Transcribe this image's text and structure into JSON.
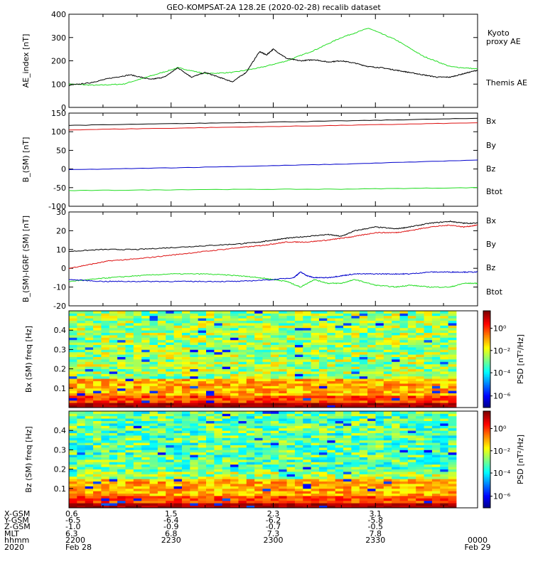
{
  "title": "GEO-KOMPSAT-2A 128.2E (2020-02-28) recalib dataset",
  "colors": {
    "black": "#000000",
    "green": "#22dd22",
    "red": "#dd1111",
    "blue": "#0000cc"
  },
  "chart_data": [
    {
      "type": "line",
      "name": "ae-panel",
      "ylabel": "AE_index [nT]",
      "ylim": [
        0,
        400
      ],
      "yticks": [
        0,
        100,
        200,
        300,
        400
      ],
      "legend": [
        {
          "label": "Kyoto",
          "color": "#22dd22"
        },
        {
          "label": "proxy AE",
          "color": "#22dd22"
        },
        {
          "label": "Themis AE",
          "color": "#000000"
        }
      ],
      "series": [
        {
          "name": "Kyoto proxy AE",
          "color": "#22dd22",
          "x": [
            0,
            4,
            8,
            12,
            16,
            20,
            24,
            28,
            32,
            36,
            40,
            44,
            48,
            52,
            56,
            60
          ],
          "y": [
            100,
            95,
            100,
            135,
            170,
            145,
            150,
            170,
            200,
            245,
            300,
            340,
            290,
            220,
            175,
            165
          ]
        },
        {
          "name": "Themis AE",
          "color": "#000000",
          "x": [
            0,
            3,
            6,
            9,
            12,
            14,
            16,
            18,
            20,
            22,
            24,
            26,
            28,
            29,
            30,
            32,
            34,
            36,
            38,
            40,
            42,
            44,
            46,
            48,
            50,
            52,
            54,
            56,
            58,
            60
          ],
          "y": [
            95,
            105,
            125,
            140,
            120,
            130,
            170,
            130,
            150,
            130,
            110,
            150,
            240,
            225,
            250,
            210,
            200,
            205,
            195,
            200,
            190,
            175,
            170,
            160,
            150,
            140,
            130,
            130,
            145,
            160
          ]
        }
      ]
    },
    {
      "type": "line",
      "name": "b-sm-panel",
      "ylabel": "B_(SM) [nT]",
      "ylim": [
        -100,
        150
      ],
      "yticks": [
        -100,
        -50,
        0,
        50,
        100,
        150
      ],
      "legend": [
        {
          "label": "Bx",
          "color": "#0000cc"
        },
        {
          "label": "By",
          "color": "#22dd22"
        },
        {
          "label": "Bz",
          "color": "#dd1111"
        },
        {
          "label": "Btot",
          "color": "#000000"
        }
      ],
      "series": [
        {
          "name": "Btot",
          "color": "#000000",
          "x": [
            0,
            20,
            40,
            60
          ],
          "y": [
            117,
            123,
            129,
            136
          ]
        },
        {
          "name": "Bz",
          "color": "#dd1111",
          "x": [
            0,
            20,
            40,
            60
          ],
          "y": [
            105,
            111,
            117,
            124
          ]
        },
        {
          "name": "Bx",
          "color": "#0000cc",
          "x": [
            0,
            20,
            40,
            60
          ],
          "y": [
            -2,
            5,
            13,
            24
          ]
        },
        {
          "name": "By",
          "color": "#22dd22",
          "x": [
            0,
            20,
            40,
            60
          ],
          "y": [
            -58,
            -55,
            -54,
            -50
          ]
        }
      ]
    },
    {
      "type": "line",
      "name": "b-igrf-panel",
      "ylabel": "B_(SM)-IGRF (SM) [nT]",
      "ylim": [
        -20,
        30
      ],
      "yticks": [
        -20,
        -10,
        0,
        10,
        20,
        30
      ],
      "legend": [
        {
          "label": "Bx",
          "color": "#0000cc"
        },
        {
          "label": "By",
          "color": "#22dd22"
        },
        {
          "label": "Bz",
          "color": "#dd1111"
        },
        {
          "label": "Btot",
          "color": "#000000"
        }
      ],
      "series": [
        {
          "name": "Btot",
          "color": "#000000",
          "x": [
            0,
            5,
            10,
            15,
            20,
            25,
            28,
            30,
            32,
            35,
            38,
            40,
            42,
            45,
            48,
            50,
            53,
            56,
            58,
            60
          ],
          "y": [
            9,
            10,
            10,
            11,
            12,
            13,
            14,
            15,
            16,
            17,
            18,
            17,
            20,
            22,
            21,
            22,
            24,
            25,
            24,
            24
          ]
        },
        {
          "name": "Bz",
          "color": "#dd1111",
          "x": [
            0,
            3,
            6,
            10,
            15,
            20,
            25,
            28,
            30,
            32,
            35,
            38,
            40,
            42,
            45,
            48,
            50,
            53,
            56,
            58,
            60
          ],
          "y": [
            0,
            2,
            4,
            5,
            7,
            9,
            11,
            12,
            13,
            14,
            14,
            15,
            16,
            17,
            19,
            19,
            20,
            22,
            23,
            22,
            23
          ]
        },
        {
          "name": "By",
          "color": "#22dd22",
          "x": [
            0,
            3,
            6,
            10,
            15,
            20,
            25,
            28,
            30,
            32,
            34,
            36,
            38,
            40,
            42,
            45,
            48,
            50,
            53,
            56,
            58,
            60
          ],
          "y": [
            -7,
            -6,
            -5,
            -4,
            -3,
            -3,
            -4,
            -5,
            -6,
            -7,
            -10,
            -6,
            -8,
            -8,
            -6,
            -9,
            -10,
            -9,
            -10,
            -10,
            -8,
            -8
          ]
        },
        {
          "name": "Bx",
          "color": "#0000cc",
          "x": [
            0,
            5,
            10,
            15,
            20,
            25,
            30,
            33,
            34,
            35,
            36,
            38,
            40,
            42,
            45,
            48,
            50,
            53,
            56,
            58,
            60
          ],
          "y": [
            -6,
            -7,
            -7,
            -7,
            -7,
            -7,
            -6,
            -5,
            -2,
            -4,
            -5,
            -5,
            -4,
            -3,
            -3,
            -3,
            -3,
            -2,
            -2,
            -2,
            -2
          ]
        }
      ]
    },
    {
      "type": "heatmap",
      "name": "bx-spectrogram",
      "ylabel": "Bx (SM) freq [Hz]",
      "ylim": [
        0,
        0.5
      ],
      "yticks": [
        0.1,
        0.2,
        0.3,
        0.4
      ],
      "yticklabels": [
        "0.1",
        "0.2",
        "0.3",
        "0.4"
      ]
    },
    {
      "type": "heatmap",
      "name": "bz-spectrogram",
      "ylabel": "Bz (SM) freq [Hz]",
      "ylim": [
        0,
        0.5
      ],
      "yticks": [
        0.1,
        0.2,
        0.3,
        0.4
      ],
      "yticklabels": [
        "0.1",
        "0.2",
        "0.3",
        "0.4"
      ]
    }
  ],
  "colorbar": {
    "label": "PSD [nT²/Hz]",
    "ticks": [
      "10⁰",
      "10⁻²",
      "10⁻⁴",
      "10⁻⁶"
    ],
    "ticks_bz": [
      "10⁰",
      "10⁻²",
      "10⁻⁴",
      "10⁻⁶"
    ]
  },
  "xaxis": {
    "row_labels": [
      "X-GSM",
      "Y-GSM",
      "Z-GSM",
      "MLT",
      "hhmm",
      "2020"
    ],
    "ticks": [
      {
        "minute": 0,
        "values": [
          "0.6",
          "-6.5",
          "-1.0",
          "6.3",
          "2200",
          "Feb 28"
        ]
      },
      {
        "minute": 15,
        "values": [
          "1.5",
          "-6.4",
          "-0.9",
          "6.8",
          "2230",
          ""
        ]
      },
      {
        "minute": 30,
        "values": [
          "2.3",
          "-6.2",
          "-0.7",
          "7.3",
          "2300",
          ""
        ]
      },
      {
        "minute": 45,
        "values": [
          "3.1",
          "-5.8",
          "-0.5",
          "7.8",
          "2330",
          ""
        ]
      },
      {
        "minute": 60,
        "values": [
          "",
          "",
          "",
          "",
          "0000",
          "Feb 29"
        ]
      }
    ]
  }
}
